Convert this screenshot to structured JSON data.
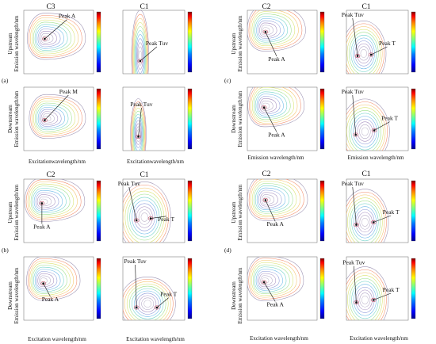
{
  "colors": {
    "colormap": [
      "#00008f",
      "#0000ff",
      "#0080ff",
      "#00ffff",
      "#80ff80",
      "#ffff00",
      "#ff8000",
      "#ff0000",
      "#800000"
    ],
    "contour_outer": "#9a8fb0",
    "contour_inner": "#c04b63"
  },
  "panel_letters": [
    "(a)",
    "(b)",
    "(c)",
    "(d)"
  ],
  "axis_labels": {
    "upstream": "Upstream",
    "downstream": "Downstream",
    "emission": "Emission wavelength/nm",
    "excitation_a": "Excitationwavelength/nm",
    "excitation_b": "Excitation wavelength/nm",
    "emission_c": "Emission wavelength/nm",
    "excitation_d": "Excitation wavelength/nm"
  },
  "panels": [
    {
      "title": "C3",
      "peaks": [
        {
          "label": "Peak A"
        }
      ]
    },
    {
      "title": "C1",
      "peaks": [
        {
          "label": "Peak Tuv"
        }
      ]
    },
    {
      "title": "",
      "peaks": [
        {
          "label": "Peak M"
        }
      ]
    },
    {
      "title": "",
      "peaks": [
        {
          "label": "Peak Tuv"
        }
      ]
    },
    {
      "title": "C2",
      "peaks": [
        {
          "label": "Peak A"
        }
      ]
    },
    {
      "title": "C1",
      "peaks": [
        {
          "label": "Peak Tuv"
        },
        {
          "label": "Peak T"
        }
      ]
    },
    {
      "title": "",
      "peaks": [
        {
          "label": "Peak A"
        }
      ]
    },
    {
      "title": "",
      "peaks": [
        {
          "label": "Peak Tuv"
        },
        {
          "label": "Peak T"
        }
      ]
    },
    {
      "title": "C2",
      "peaks": [
        {
          "label": "Peak A"
        }
      ]
    },
    {
      "title": "C1",
      "peaks": [
        {
          "label": "Peak Tuv"
        },
        {
          "label": "Peak T"
        }
      ]
    },
    {
      "title": "",
      "peaks": [
        {
          "label": "Peak A"
        }
      ]
    },
    {
      "title": "",
      "peaks": [
        {
          "label": "Peak Tuv"
        },
        {
          "label": "Peak T"
        }
      ]
    },
    {
      "title": "C2",
      "peaks": [
        {
          "label": "Peak A"
        }
      ]
    },
    {
      "title": "C1",
      "peaks": [
        {
          "label": "Peak Tuv"
        },
        {
          "label": "Peak T"
        }
      ]
    },
    {
      "title": "C3",
      "peaks": [
        {
          "label": "Peak A"
        }
      ]
    },
    {
      "title": "C1",
      "peaks": [
        {
          "label": "Peak Tuv"
        },
        {
          "label": "Peak T"
        }
      ]
    }
  ]
}
